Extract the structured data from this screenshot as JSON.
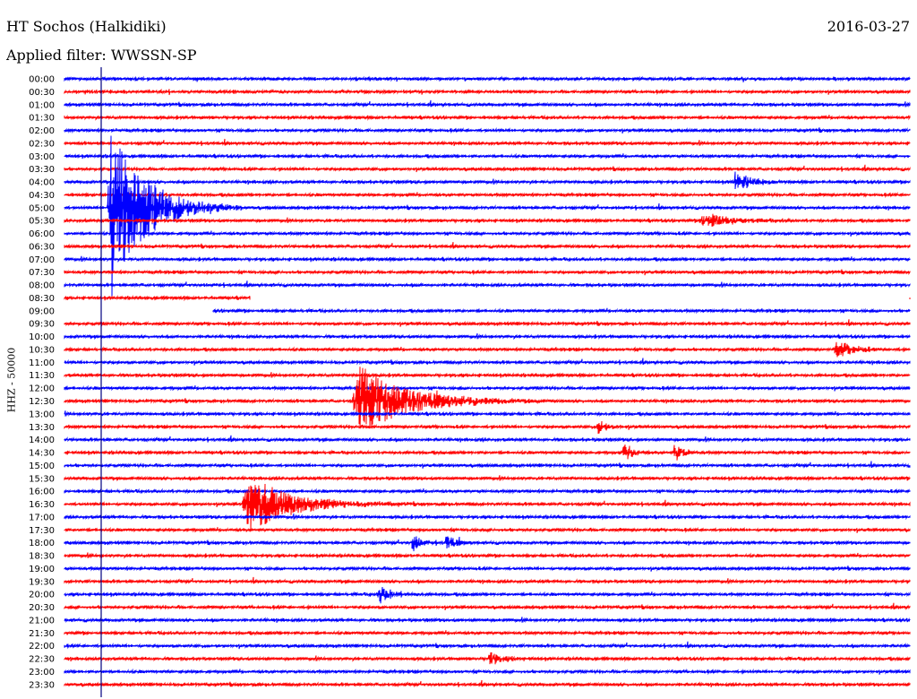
{
  "header": {
    "station": "HT Sochos (Halkidiki)",
    "filter": "Applied filter: WWSSN-SP",
    "date": "2016-03-27",
    "channel_label": "HHZ - 50000"
  },
  "colors": {
    "even_trace": "#0000ff",
    "odd_trace": "#ff0000",
    "marker": "#000080"
  },
  "chart_data": {
    "type": "line",
    "title": "HT Sochos (Halkidiki)",
    "subtitle": "Applied filter: WWSSN-SP",
    "ylabel": "HHZ - 50000",
    "y_tick_labels": [
      "00:00",
      "00:30",
      "01:00",
      "01:30",
      "02:00",
      "02:30",
      "03:00",
      "03:30",
      "04:00",
      "04:30",
      "05:00",
      "05:30",
      "06:00",
      "06:30",
      "07:00",
      "07:30",
      "08:00",
      "08:30",
      "09:00",
      "09:30",
      "10:00",
      "10:30",
      "11:00",
      "11:30",
      "12:00",
      "12:30",
      "13:00",
      "13:30",
      "14:00",
      "14:30",
      "15:00",
      "15:30",
      "16:00",
      "16:30",
      "17:00",
      "17:30",
      "18:00",
      "18:30",
      "19:00",
      "19:30",
      "20:00",
      "20:30",
      "21:00",
      "21:30",
      "22:00",
      "22:30",
      "23:00",
      "23:30"
    ],
    "trace_window_minutes": 30,
    "gaps": [
      {
        "row": "08:30",
        "from_fraction": 0.22,
        "to_fraction": 1.0
      },
      {
        "row": "09:00",
        "from_fraction": 0.0,
        "to_fraction": 0.175
      }
    ],
    "events": [
      {
        "row": "05:00",
        "at_fraction": 0.05,
        "amplitude_rows": 8,
        "duration_fraction": 0.04,
        "note": "large teleseism"
      },
      {
        "row": "12:30",
        "at_fraction": 0.34,
        "amplitude_rows": 3,
        "duration_fraction": 0.06
      },
      {
        "row": "16:30",
        "at_fraction": 0.21,
        "amplitude_rows": 2.5,
        "duration_fraction": 0.05
      },
      {
        "row": "18:00",
        "at_fraction": 0.41,
        "amplitude_rows": 0.8,
        "duration_fraction": 0.01
      },
      {
        "row": "18:00",
        "at_fraction": 0.45,
        "amplitude_rows": 0.8,
        "duration_fraction": 0.01
      },
      {
        "row": "20:00",
        "at_fraction": 0.37,
        "amplitude_rows": 0.8,
        "duration_fraction": 0.015
      },
      {
        "row": "22:30",
        "at_fraction": 0.5,
        "amplitude_rows": 0.6,
        "duration_fraction": 0.015
      },
      {
        "row": "10:30",
        "at_fraction": 0.91,
        "amplitude_rows": 0.8,
        "duration_fraction": 0.02
      },
      {
        "row": "04:00",
        "at_fraction": 0.79,
        "amplitude_rows": 0.8,
        "duration_fraction": 0.02
      },
      {
        "row": "05:30",
        "at_fraction": 0.75,
        "amplitude_rows": 0.7,
        "duration_fraction": 0.03
      },
      {
        "row": "14:30",
        "at_fraction": 0.66,
        "amplitude_rows": 0.8,
        "duration_fraction": 0.01
      },
      {
        "row": "14:30",
        "at_fraction": 0.72,
        "amplitude_rows": 0.8,
        "duration_fraction": 0.01
      },
      {
        "row": "13:30",
        "at_fraction": 0.63,
        "amplitude_rows": 0.7,
        "duration_fraction": 0.01
      }
    ],
    "grid": false,
    "legend": "none"
  }
}
